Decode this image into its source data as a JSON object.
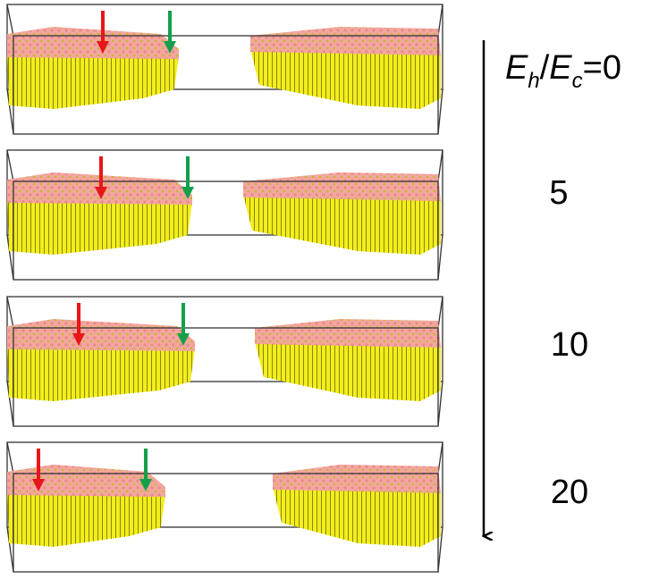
{
  "axis_label": {
    "parts": [
      "E",
      "h",
      "/",
      "E",
      "c",
      "="
    ]
  },
  "panels": [
    {
      "value": "0"
    },
    {
      "value": "5"
    },
    {
      "value": "10"
    },
    {
      "value": "20"
    }
  ]
}
